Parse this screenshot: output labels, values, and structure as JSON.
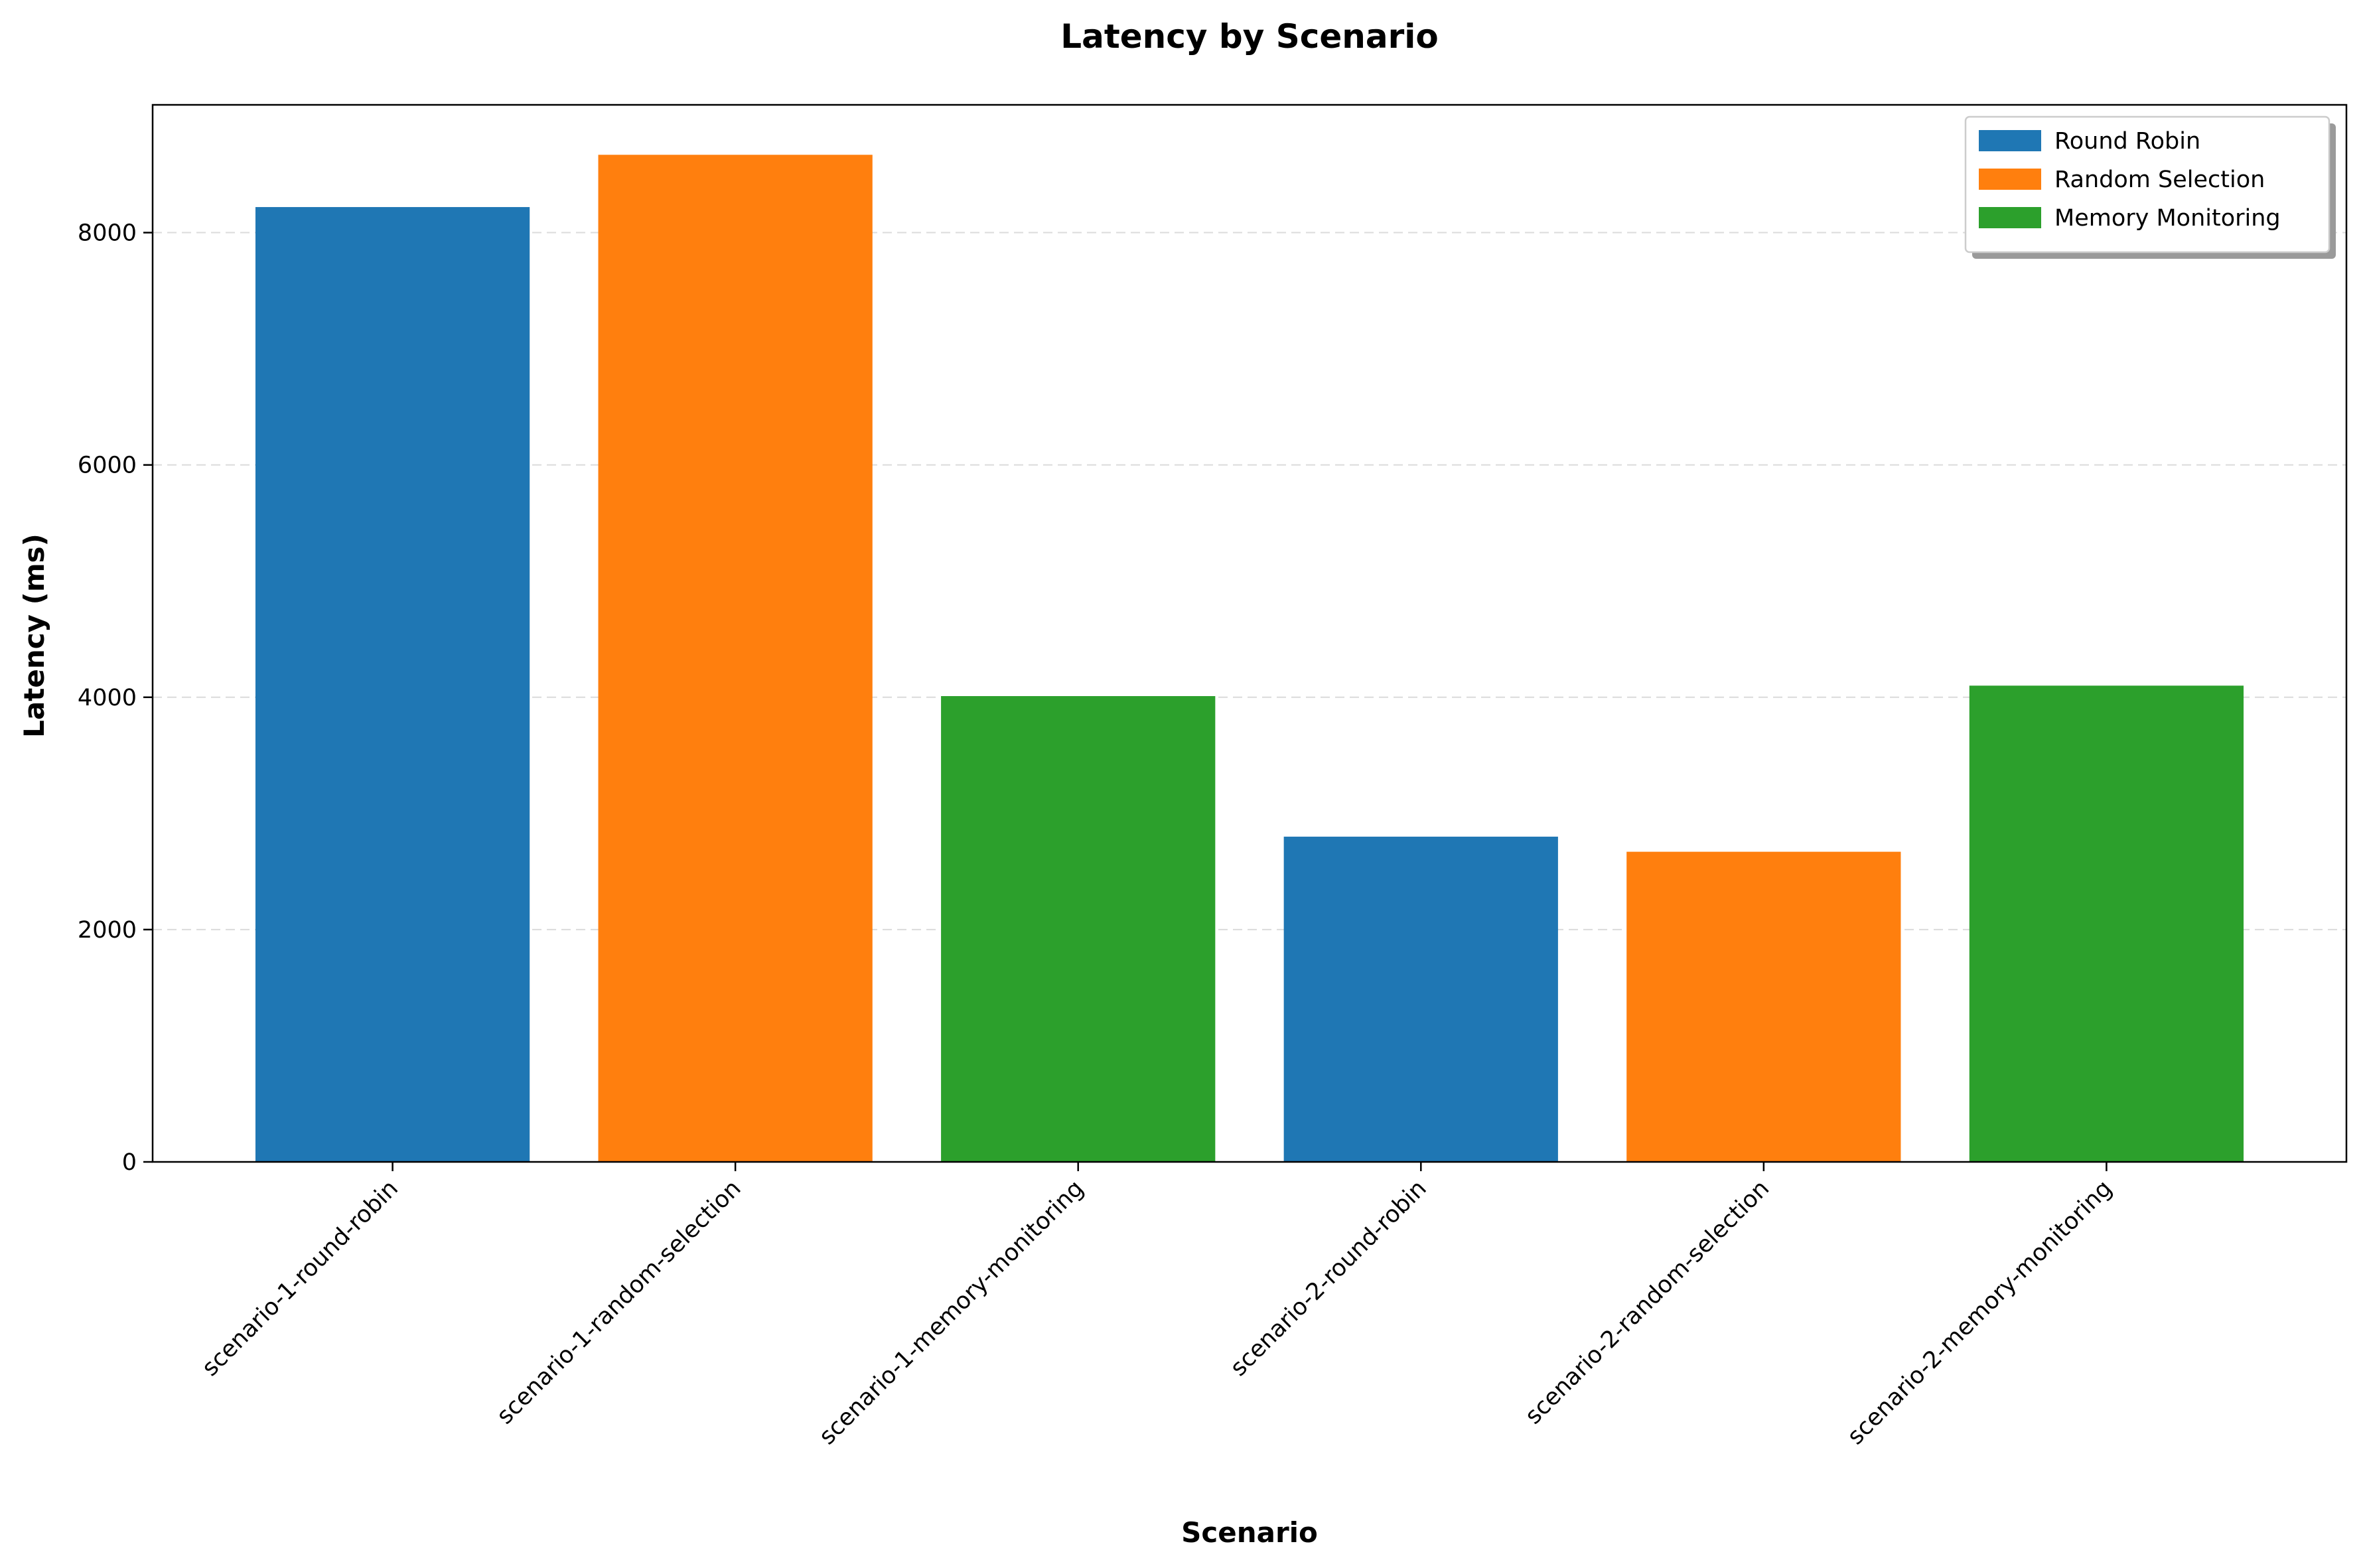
{
  "chart_data": {
    "type": "bar",
    "title": "Latency by Scenario",
    "xlabel": "Scenario",
    "ylabel": "Latency (ms)",
    "ylim": [
      0,
      9100
    ],
    "yticks": [
      0,
      2000,
      4000,
      6000,
      8000
    ],
    "grid": "horizontal dashed",
    "legend_position": "top-right",
    "categories": [
      "scenario-1-round-robin",
      "scenario-1-random-selection",
      "scenario-1-memory-monitoring",
      "scenario-2-round-robin",
      "scenario-2-random-selection",
      "scenario-2-memory-monitoring"
    ],
    "values": [
      8220,
      8670,
      4010,
      2800,
      2670,
      4100
    ],
    "bar_series": [
      "Round Robin",
      "Random Selection",
      "Memory Monitoring",
      "Round Robin",
      "Random Selection",
      "Memory Monitoring"
    ],
    "series": [
      {
        "name": "Round Robin",
        "color": "#1f77b4"
      },
      {
        "name": "Random Selection",
        "color": "#ff7f0e"
      },
      {
        "name": "Memory Monitoring",
        "color": "#2ca02c"
      }
    ]
  }
}
